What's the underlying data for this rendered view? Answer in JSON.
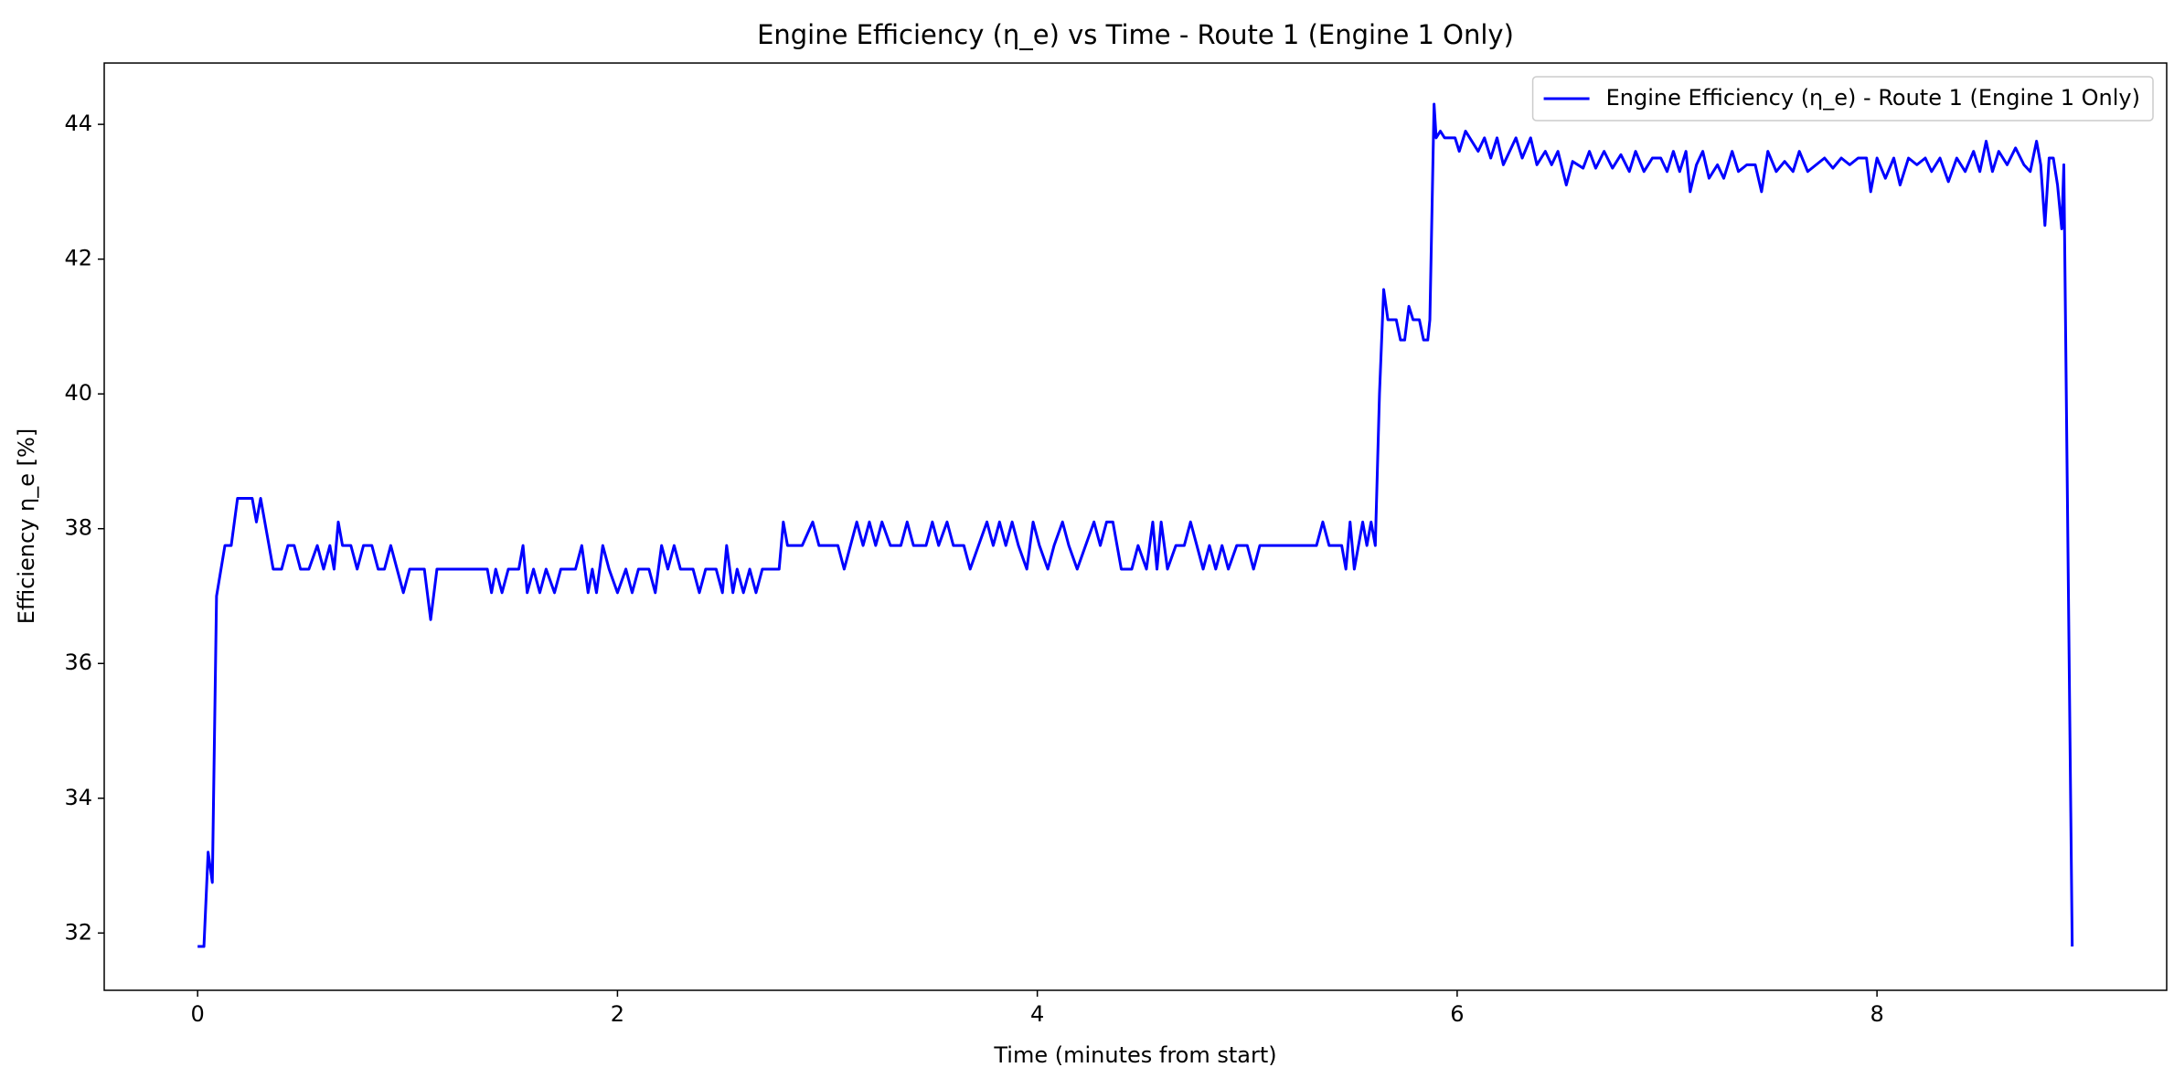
{
  "chart_data": {
    "type": "line",
    "title": "Engine Efficiency (η_e) vs Time - Route 1 (Engine 1 Only)",
    "x_label": "Time (minutes from start)",
    "y_label": "Efficiency η_e [%]",
    "xlim": [
      -0.445,
      9.38
    ],
    "ylim": [
      31.15,
      44.91
    ],
    "xticks": [
      0,
      2,
      4,
      6,
      8
    ],
    "yticks": [
      32,
      34,
      36,
      38,
      40,
      42,
      44
    ],
    "grid": false,
    "legend": "upper right",
    "x": [
      0.0,
      0.03,
      0.05,
      0.07,
      0.09,
      0.13,
      0.16,
      0.19,
      0.26,
      0.28,
      0.3,
      0.36,
      0.4,
      0.43,
      0.46,
      0.49,
      0.53,
      0.57,
      0.6,
      0.63,
      0.65,
      0.67,
      0.69,
      0.73,
      0.76,
      0.79,
      0.83,
      0.86,
      0.89,
      0.92,
      0.95,
      0.98,
      1.01,
      1.05,
      1.08,
      1.11,
      1.14,
      1.17,
      1.22,
      1.25,
      1.28,
      1.38,
      1.4,
      1.42,
      1.45,
      1.48,
      1.53,
      1.55,
      1.57,
      1.6,
      1.63,
      1.66,
      1.7,
      1.73,
      1.8,
      1.83,
      1.86,
      1.88,
      1.9,
      1.93,
      1.96,
      2.0,
      2.04,
      2.07,
      2.1,
      2.15,
      2.18,
      2.21,
      2.24,
      2.27,
      2.3,
      2.36,
      2.39,
      2.42,
      2.47,
      2.5,
      2.52,
      2.55,
      2.57,
      2.6,
      2.63,
      2.66,
      2.69,
      2.77,
      2.79,
      2.81,
      2.88,
      2.93,
      2.96,
      3.05,
      3.08,
      3.11,
      3.14,
      3.17,
      3.2,
      3.23,
      3.26,
      3.3,
      3.35,
      3.38,
      3.41,
      3.47,
      3.5,
      3.53,
      3.57,
      3.6,
      3.65,
      3.68,
      3.72,
      3.76,
      3.79,
      3.82,
      3.85,
      3.88,
      3.91,
      3.95,
      3.98,
      4.01,
      4.05,
      4.08,
      4.12,
      4.15,
      4.19,
      4.23,
      4.27,
      4.3,
      4.33,
      4.36,
      4.4,
      4.45,
      4.48,
      4.52,
      4.55,
      4.57,
      4.59,
      4.62,
      4.66,
      4.7,
      4.73,
      4.76,
      4.79,
      4.82,
      4.85,
      4.88,
      4.91,
      4.95,
      5.0,
      5.03,
      5.06,
      5.2,
      5.25,
      5.33,
      5.36,
      5.39,
      5.45,
      5.47,
      5.49,
      5.51,
      5.55,
      5.57,
      5.59,
      5.61,
      5.63,
      5.65,
      5.67,
      5.71,
      5.73,
      5.75,
      5.77,
      5.79,
      5.82,
      5.84,
      5.86,
      5.87,
      5.89,
      5.9,
      5.92,
      5.94,
      5.99,
      6.01,
      6.04,
      6.07,
      6.1,
      6.13,
      6.16,
      6.19,
      6.22,
      6.25,
      6.28,
      6.31,
      6.35,
      6.38,
      6.42,
      6.45,
      6.48,
      6.52,
      6.55,
      6.6,
      6.63,
      6.66,
      6.7,
      6.74,
      6.78,
      6.82,
      6.85,
      6.89,
      6.93,
      6.97,
      7.0,
      7.03,
      7.06,
      7.09,
      7.11,
      7.14,
      7.17,
      7.2,
      7.24,
      7.27,
      7.31,
      7.34,
      7.38,
      7.42,
      7.45,
      7.48,
      7.52,
      7.56,
      7.6,
      7.63,
      7.67,
      7.71,
      7.75,
      7.79,
      7.83,
      7.87,
      7.91,
      7.95,
      7.97,
      8.0,
      8.04,
      8.08,
      8.11,
      8.15,
      8.19,
      8.23,
      8.26,
      8.3,
      8.34,
      8.38,
      8.42,
      8.46,
      8.49,
      8.52,
      8.55,
      8.58,
      8.62,
      8.66,
      8.7,
      8.73,
      8.76,
      8.78,
      8.8,
      8.82,
      8.84,
      8.86,
      8.88,
      8.89,
      8.93
    ],
    "series": [
      {
        "name": "Engine Efficiency (η_e) - Route 1 (Engine 1 Only)",
        "color": "#0000ff",
        "values": [
          31.8,
          31.8,
          33.2,
          32.75,
          37.0,
          37.75,
          37.75,
          38.45,
          38.45,
          38.1,
          38.45,
          37.4,
          37.4,
          37.75,
          37.75,
          37.4,
          37.4,
          37.75,
          37.4,
          37.75,
          37.4,
          38.1,
          37.75,
          37.75,
          37.4,
          37.75,
          37.75,
          37.4,
          37.4,
          37.75,
          37.4,
          37.05,
          37.4,
          37.4,
          37.4,
          36.65,
          37.4,
          37.4,
          37.4,
          37.4,
          37.4,
          37.4,
          37.05,
          37.4,
          37.05,
          37.4,
          37.4,
          37.75,
          37.05,
          37.4,
          37.05,
          37.4,
          37.05,
          37.4,
          37.4,
          37.75,
          37.05,
          37.4,
          37.05,
          37.75,
          37.4,
          37.05,
          37.4,
          37.05,
          37.4,
          37.4,
          37.05,
          37.75,
          37.4,
          37.75,
          37.4,
          37.4,
          37.05,
          37.4,
          37.4,
          37.05,
          37.75,
          37.05,
          37.4,
          37.05,
          37.4,
          37.05,
          37.4,
          37.4,
          38.1,
          37.75,
          37.75,
          38.1,
          37.75,
          37.75,
          37.4,
          37.75,
          38.1,
          37.75,
          38.1,
          37.75,
          38.1,
          37.75,
          37.75,
          38.1,
          37.75,
          37.75,
          38.1,
          37.75,
          38.1,
          37.75,
          37.75,
          37.4,
          37.75,
          38.1,
          37.75,
          38.1,
          37.75,
          38.1,
          37.75,
          37.4,
          38.1,
          37.75,
          37.4,
          37.75,
          38.1,
          37.75,
          37.4,
          37.75,
          38.1,
          37.75,
          38.1,
          38.1,
          37.4,
          37.4,
          37.75,
          37.4,
          38.1,
          37.4,
          38.1,
          37.4,
          37.75,
          37.75,
          38.1,
          37.75,
          37.4,
          37.75,
          37.4,
          37.75,
          37.4,
          37.75,
          37.75,
          37.4,
          37.75,
          37.75,
          37.75,
          37.75,
          38.1,
          37.75,
          37.75,
          37.4,
          38.1,
          37.4,
          38.1,
          37.75,
          38.1,
          37.75,
          40.0,
          41.55,
          41.1,
          41.1,
          40.8,
          40.8,
          41.3,
          41.1,
          41.1,
          40.8,
          40.8,
          41.1,
          44.3,
          43.8,
          43.9,
          43.8,
          43.8,
          43.6,
          43.9,
          43.75,
          43.6,
          43.8,
          43.5,
          43.8,
          43.4,
          43.6,
          43.8,
          43.5,
          43.8,
          43.4,
          43.6,
          43.4,
          43.6,
          43.1,
          43.45,
          43.35,
          43.6,
          43.35,
          43.6,
          43.35,
          43.55,
          43.3,
          43.6,
          43.3,
          43.5,
          43.5,
          43.3,
          43.6,
          43.3,
          43.6,
          43.0,
          43.4,
          43.6,
          43.2,
          43.4,
          43.2,
          43.6,
          43.3,
          43.4,
          43.4,
          43.0,
          43.6,
          43.3,
          43.45,
          43.3,
          43.6,
          43.3,
          43.4,
          43.5,
          43.35,
          43.5,
          43.4,
          43.5,
          43.5,
          43.0,
          43.5,
          43.2,
          43.5,
          43.1,
          43.5,
          43.4,
          43.5,
          43.3,
          43.5,
          43.15,
          43.5,
          43.3,
          43.6,
          43.3,
          43.75,
          43.3,
          43.6,
          43.4,
          43.65,
          43.4,
          43.3,
          43.75,
          43.4,
          42.5,
          43.5,
          43.5,
          43.1,
          42.45,
          43.4,
          31.8
        ]
      }
    ]
  }
}
